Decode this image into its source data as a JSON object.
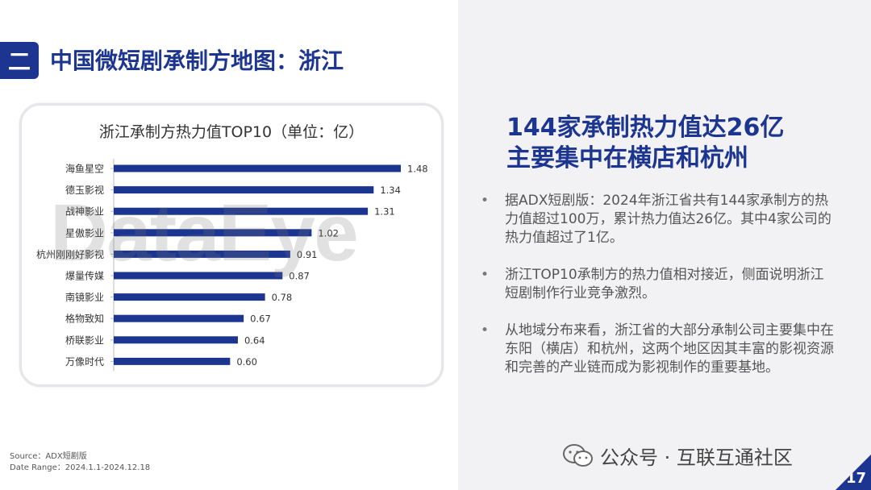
{
  "header": {
    "section_mark": "二",
    "title": "中国微短剧承制方地图：浙江"
  },
  "watermark": "DataEye",
  "chart_data": {
    "type": "bar",
    "orientation": "horizontal",
    "title": "浙江承制方热力值TOP10（单位：亿）",
    "categories": [
      "海鱼星空",
      "德玉影视",
      "战神影业",
      "星傲影业",
      "杭州刚刚好影视",
      "爆量传媒",
      "南镜影业",
      "格物致知",
      "桥联影业",
      "万像时代"
    ],
    "values": [
      1.48,
      1.34,
      1.31,
      1.02,
      0.91,
      0.87,
      0.78,
      0.67,
      0.64,
      0.6
    ],
    "value_labels": [
      "1.48",
      "1.34",
      "1.31",
      "1.02",
      "0.91",
      "0.87",
      "0.78",
      "0.67",
      "0.64",
      "0.60"
    ],
    "bar_color": "#1c3591",
    "xlim": [
      0,
      1.48
    ]
  },
  "headline": {
    "line1": "144家承制热力值达26亿",
    "line2": "主要集中在横店和杭州"
  },
  "bullets": [
    {
      "dot": "•",
      "text": "据ADX短剧版：2024年浙江省共有144家承制方的热力值超过100万，累计热力值达26亿。其中4家公司的热力值超过了1亿。"
    },
    {
      "dot": "•",
      "text": "浙江TOP10承制方的热力值相对接近，侧面说明浙江短剧制作行业竞争激烈。"
    },
    {
      "dot": "•",
      "text": "从地域分布来看，浙江省的大部分承制公司主要集中在东阳（横店）和杭州，这两个地区因其丰富的影视资源和完善的产业链而成为影视制作的重要基地。"
    }
  ],
  "footer": {
    "source": "Source：ADX短剧版",
    "date_range": "Date Range：2024.1.1-2024.12.18",
    "wechat": "公众号 · 互联互通社区",
    "page_number": "17"
  },
  "colors": {
    "brand": "#1c3591",
    "panel_bg": "#f2f2f4"
  }
}
